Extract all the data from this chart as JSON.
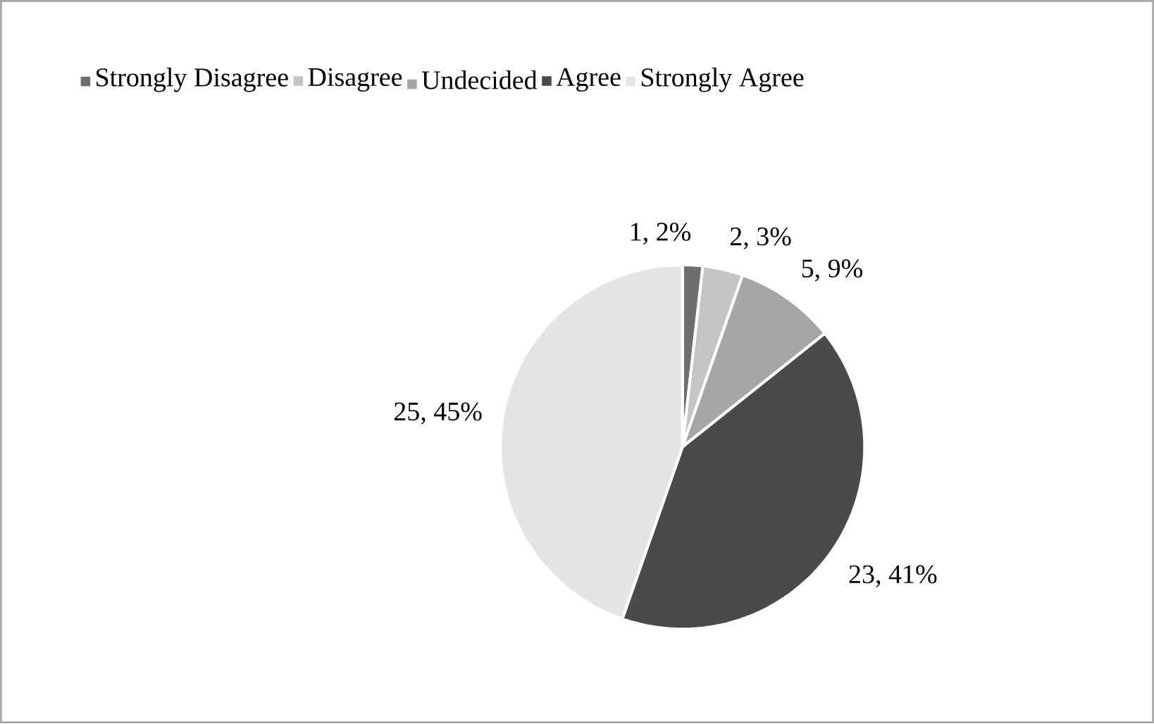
{
  "chart_data": {
    "type": "pie",
    "categories": [
      "Strongly Disagree",
      "Disagree",
      "Undecided",
      "Agree",
      "Strongly Agree"
    ],
    "values": [
      1,
      2,
      5,
      23,
      25
    ],
    "colors": [
      "#6e6e6e",
      "#c4c4c4",
      "#a6a6a6",
      "#4a4a4a",
      "#e4e4e4"
    ],
    "value_labels": [
      "1, 2%",
      "2, 3%",
      "5, 9%",
      "23, 41%",
      "25, 45%"
    ],
    "legend": "top"
  }
}
